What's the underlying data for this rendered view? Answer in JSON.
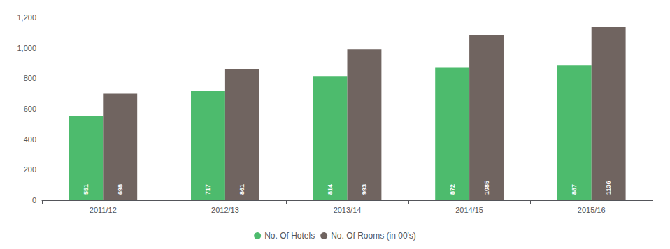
{
  "chart_data": {
    "type": "bar",
    "categories": [
      "2011/12",
      "2012/13",
      "2013/14",
      "2014/15",
      "2015/16"
    ],
    "series": [
      {
        "name": "No. Of Hotels",
        "color": "#4dbb6d",
        "values": [
          551,
          717,
          814,
          872,
          887
        ]
      },
      {
        "name": "No. Of Rooms (in 00's)",
        "color": "#706460",
        "values": [
          698,
          861,
          993,
          1085,
          1136
        ]
      }
    ],
    "ylim": [
      0,
      1200
    ],
    "yticks": [
      0,
      200,
      400,
      600,
      800,
      {
        "value": 1000,
        "label": "1,000"
      },
      {
        "value": 1200,
        "label": "1,200"
      }
    ],
    "grid": false,
    "legend": "bottom",
    "data_labels": true
  }
}
